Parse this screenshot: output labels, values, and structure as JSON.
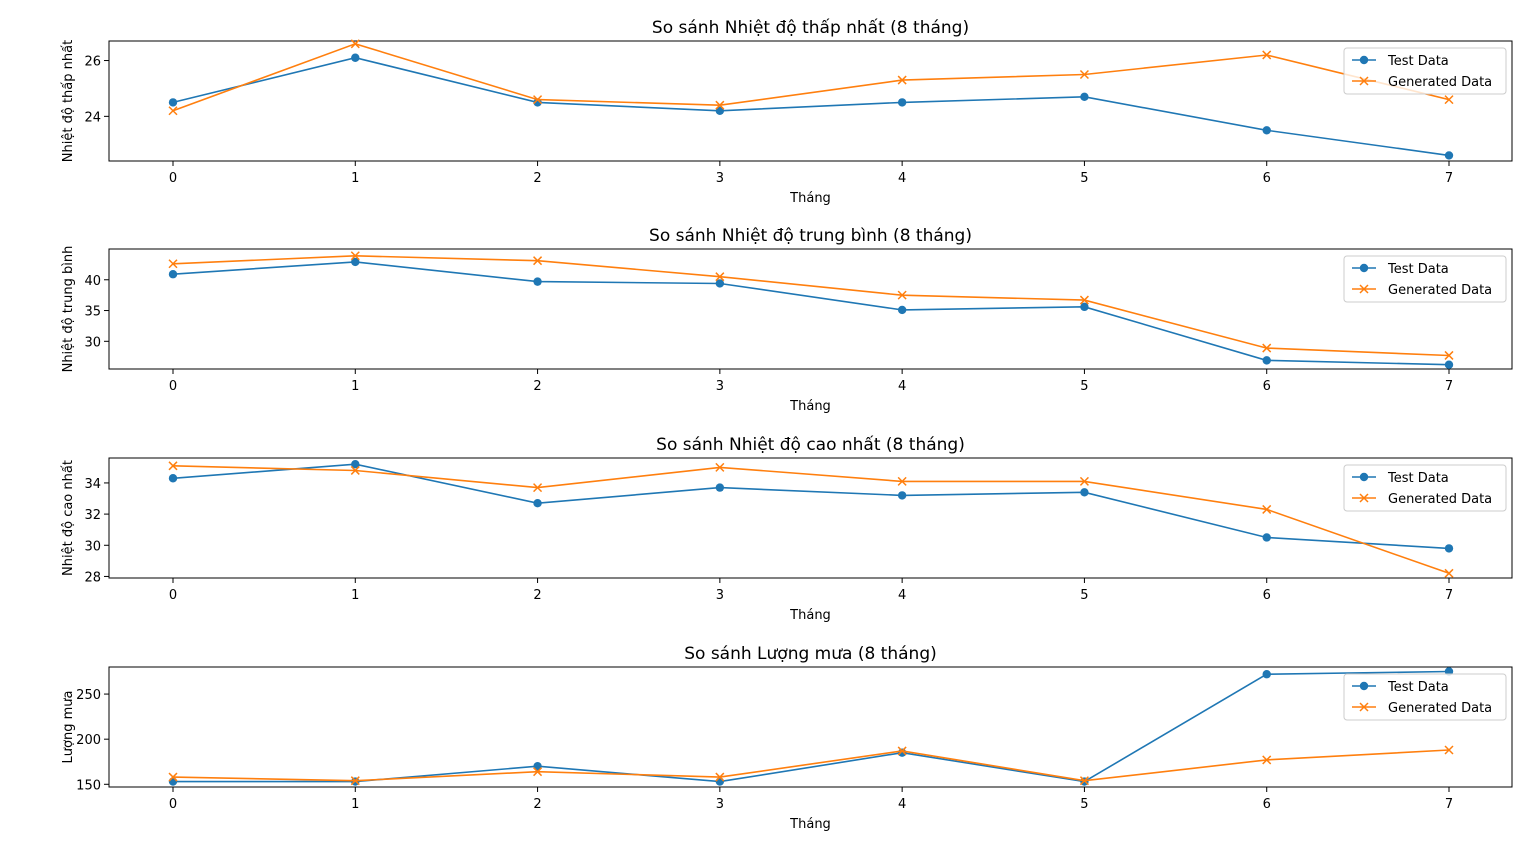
{
  "chart_data": [
    {
      "type": "line",
      "title": "So sánh Nhiệt độ thấp nhất (8 tháng)",
      "xlabel": "Tháng",
      "ylabel": "Nhiệt độ thấp nhất",
      "x": [
        0,
        1,
        2,
        3,
        4,
        5,
        6,
        7
      ],
      "ylim": [
        22.4,
        26.7
      ],
      "yticks": [
        24,
        26
      ],
      "grid": false,
      "legend_position": "top-right",
      "series": [
        {
          "name": "Test Data",
          "color": "#1f77b4",
          "marker": "circle",
          "values": [
            24.5,
            26.1,
            24.5,
            24.2,
            24.5,
            24.7,
            23.5,
            22.6
          ]
        },
        {
          "name": "Generated Data",
          "color": "#ff7f0e",
          "marker": "x",
          "values": [
            24.2,
            26.6,
            24.6,
            24.4,
            25.3,
            25.5,
            26.2,
            24.6
          ]
        }
      ]
    },
    {
      "type": "line",
      "title": "So sánh Nhiệt độ trung bình (8 tháng)",
      "xlabel": "Tháng",
      "ylabel": "Nhiệt độ trung bình",
      "x": [
        0,
        1,
        2,
        3,
        4,
        5,
        6,
        7
      ],
      "ylim": [
        25.5,
        45.0
      ],
      "yticks": [
        30,
        35,
        40
      ],
      "grid": false,
      "legend_position": "top-right",
      "series": [
        {
          "name": "Test Data",
          "color": "#1f77b4",
          "marker": "circle",
          "values": [
            40.9,
            42.9,
            39.7,
            39.4,
            35.1,
            35.6,
            26.9,
            26.2
          ]
        },
        {
          "name": "Generated Data",
          "color": "#ff7f0e",
          "marker": "x",
          "values": [
            42.6,
            43.9,
            43.1,
            40.5,
            37.5,
            36.7,
            28.9,
            27.7
          ]
        }
      ]
    },
    {
      "type": "line",
      "title": "So sánh Nhiệt độ cao nhất (8 tháng)",
      "xlabel": "Tháng",
      "ylabel": "Nhiệt độ cao nhất",
      "x": [
        0,
        1,
        2,
        3,
        4,
        5,
        6,
        7
      ],
      "ylim": [
        27.9,
        35.6
      ],
      "yticks": [
        28,
        30,
        32,
        34
      ],
      "grid": false,
      "legend_position": "top-right",
      "series": [
        {
          "name": "Test Data",
          "color": "#1f77b4",
          "marker": "circle",
          "values": [
            34.3,
            35.2,
            32.7,
            33.7,
            33.2,
            33.4,
            30.5,
            29.8
          ]
        },
        {
          "name": "Generated Data",
          "color": "#ff7f0e",
          "marker": "x",
          "values": [
            35.1,
            34.8,
            33.7,
            35.0,
            34.1,
            34.1,
            32.3,
            28.2
          ]
        }
      ]
    },
    {
      "type": "line",
      "title": "So sánh Lượng mưa (8 tháng)",
      "xlabel": "Tháng",
      "ylabel": "Lượng mưa",
      "x": [
        0,
        1,
        2,
        3,
        4,
        5,
        6,
        7
      ],
      "ylim": [
        147,
        280
      ],
      "yticks": [
        150,
        200,
        250
      ],
      "grid": false,
      "legend_position": "top-right",
      "series": [
        {
          "name": "Test Data",
          "color": "#1f77b4",
          "marker": "circle",
          "values": [
            153,
            153,
            170,
            153,
            185,
            153,
            272,
            275
          ]
        },
        {
          "name": "Generated Data",
          "color": "#ff7f0e",
          "marker": "x",
          "values": [
            158,
            154,
            164,
            158,
            187,
            154,
            177,
            188
          ]
        }
      ]
    }
  ]
}
